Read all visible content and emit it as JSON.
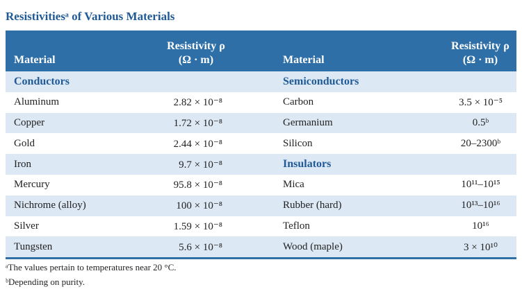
{
  "header": {
    "title": "Resistivitiesᵃ of Various Materials"
  },
  "table": {
    "columns": [
      [
        "Material"
      ],
      [
        "Resistivity ρ",
        "(Ω · m)"
      ],
      [
        "Material"
      ],
      [
        "Resistivity ρ",
        "(Ω · m)"
      ]
    ],
    "rows": [
      {
        "left": [
          "Conductors"
        ],
        "right": [
          "Semiconductors"
        ]
      },
      {
        "left": [
          "Aluminum",
          "2.82 × 10⁻⁸"
        ],
        "right": [
          "Carbon",
          "3.5 × 10⁻⁵"
        ]
      },
      {
        "left": [
          "Copper",
          "1.72 × 10⁻⁸"
        ],
        "right": [
          "Germanium",
          "0.5ᵇ"
        ]
      },
      {
        "left": [
          "Gold",
          "2.44 × 10⁻⁸"
        ],
        "right": [
          "Silicon",
          "20–2300ᵇ"
        ]
      },
      {
        "left": [
          "Iron",
          "9.7 × 10⁻⁸"
        ],
        "right": [
          "Insulators"
        ]
      },
      {
        "left": [
          "Mercury",
          "95.8 × 10⁻⁸"
        ],
        "right": [
          "Mica",
          "10¹¹–10¹⁵"
        ]
      },
      {
        "left": [
          "Nichrome (alloy)",
          "100 × 10⁻⁸"
        ],
        "right": [
          "Rubber (hard)",
          "10¹³–10¹⁶"
        ]
      },
      {
        "left": [
          "Silver",
          "1.59 × 10⁻⁸"
        ],
        "right": [
          "Teflon",
          "10¹⁶"
        ]
      },
      {
        "left": [
          "Tungsten",
          "5.6 × 10⁻⁸"
        ],
        "right": [
          "Wood (maple)",
          "3 × 10¹⁰"
        ]
      }
    ]
  },
  "footnotes": [
    "ᵃThe values pertain to temperatures near 20 °C.",
    "ᵇDepending on purity."
  ]
}
